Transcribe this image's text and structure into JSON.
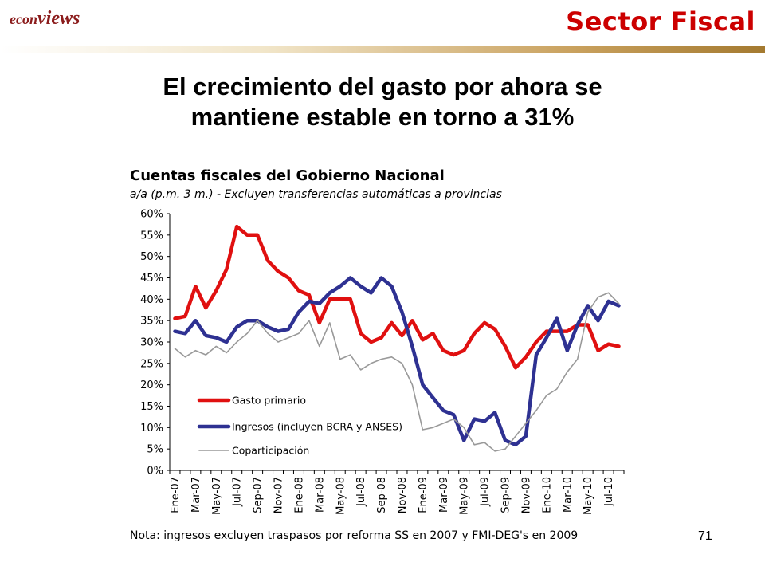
{
  "brand": {
    "logo_part1": "econ",
    "logo_part2": "views",
    "section_title": "Sector Fiscal"
  },
  "headline": {
    "line1": "El crecimiento del gasto por ahora se",
    "line2": "mantiene estable en torno a 31%"
  },
  "page_number": "71",
  "colors": {
    "section_title": "#cc0000",
    "gasto": "#e01010",
    "ingresos": "#2e3192",
    "coparticipacion": "#999999"
  },
  "chart_data": {
    "type": "line",
    "title": "Cuentas fiscales del Gobierno Nacional",
    "subtitle": "a/a (p.m. 3 m.) - Excluyen transferencias automáticas a provincias",
    "note": "Nota: ingresos excluyen traspasos por reforma SS en 2007 y FMI-DEG's en 2009",
    "xlabel": "",
    "ylabel": "",
    "ylim": [
      0,
      0.6
    ],
    "y_ticks": [
      "0%",
      "5%",
      "10%",
      "15%",
      "20%",
      "25%",
      "30%",
      "35%",
      "40%",
      "45%",
      "50%",
      "55%",
      "60%"
    ],
    "x": [
      "2007-01",
      "2007-02",
      "2007-03",
      "2007-04",
      "2007-05",
      "2007-06",
      "2007-07",
      "2007-08",
      "2007-09",
      "2007-10",
      "2007-11",
      "2007-12",
      "2008-01",
      "2008-02",
      "2008-03",
      "2008-04",
      "2008-05",
      "2008-06",
      "2008-07",
      "2008-08",
      "2008-09",
      "2008-10",
      "2008-11",
      "2008-12",
      "2009-01",
      "2009-02",
      "2009-03",
      "2009-04",
      "2009-05",
      "2009-06",
      "2009-07",
      "2009-08",
      "2009-09",
      "2009-10",
      "2009-11",
      "2009-12",
      "2010-01",
      "2010-02",
      "2010-03",
      "2010-04",
      "2010-05",
      "2010-06",
      "2010-07",
      "2010-08"
    ],
    "x_tick_labels": [
      "Ene-07",
      "Mar-07",
      "May-07",
      "Jul-07",
      "Sep-07",
      "Nov-07",
      "Ene-08",
      "Mar-08",
      "May-08",
      "Jul-08",
      "Sep-08",
      "Nov-08",
      "Ene-09",
      "Mar-09",
      "May-09",
      "Jul-09",
      "Sep-09",
      "Nov-09",
      "Ene-10",
      "Mar-10",
      "May-10",
      "Jul-10"
    ],
    "legend_position": "bottom-left",
    "grid": false,
    "series": [
      {
        "name": "Gasto primario",
        "color": "#e01010",
        "width": 4.5,
        "values": [
          0.355,
          0.36,
          0.43,
          0.38,
          0.42,
          0.47,
          0.57,
          0.55,
          0.55,
          0.49,
          0.465,
          0.45,
          0.42,
          0.41,
          0.345,
          0.4,
          0.4,
          0.4,
          0.32,
          0.3,
          0.31,
          0.345,
          0.315,
          0.35,
          0.305,
          0.32,
          0.28,
          0.27,
          0.28,
          0.32,
          0.345,
          0.33,
          0.29,
          0.24,
          0.265,
          0.3,
          0.325,
          0.325,
          0.325,
          0.34,
          0.34,
          0.28,
          0.295,
          0.29
        ]
      },
      {
        "name": "Ingresos (incluyen BCRA y ANSES)",
        "color": "#2e3192",
        "width": 4.5,
        "values": [
          0.325,
          0.32,
          0.35,
          0.315,
          0.31,
          0.3,
          0.335,
          0.35,
          0.35,
          0.335,
          0.325,
          0.33,
          0.37,
          0.395,
          0.39,
          0.415,
          0.43,
          0.45,
          0.43,
          0.415,
          0.45,
          0.43,
          0.37,
          0.29,
          0.2,
          0.17,
          0.14,
          0.13,
          0.07,
          0.12,
          0.115,
          0.135,
          0.07,
          0.06,
          0.08,
          0.27,
          0.31,
          0.355,
          0.28,
          0.34,
          0.385,
          0.35,
          0.395,
          0.385
        ]
      },
      {
        "name": "Coparticipación",
        "color": "#999999",
        "width": 1.6,
        "values": [
          0.285,
          0.265,
          0.28,
          0.27,
          0.29,
          0.275,
          0.3,
          0.32,
          0.35,
          0.32,
          0.3,
          0.31,
          0.32,
          0.35,
          0.29,
          0.345,
          0.26,
          0.27,
          0.235,
          0.25,
          0.26,
          0.265,
          0.25,
          0.2,
          0.095,
          0.1,
          0.11,
          0.12,
          0.1,
          0.06,
          0.065,
          0.045,
          0.05,
          0.08,
          0.11,
          0.14,
          0.175,
          0.19,
          0.23,
          0.26,
          0.37,
          0.405,
          0.415,
          0.39
        ]
      }
    ]
  }
}
